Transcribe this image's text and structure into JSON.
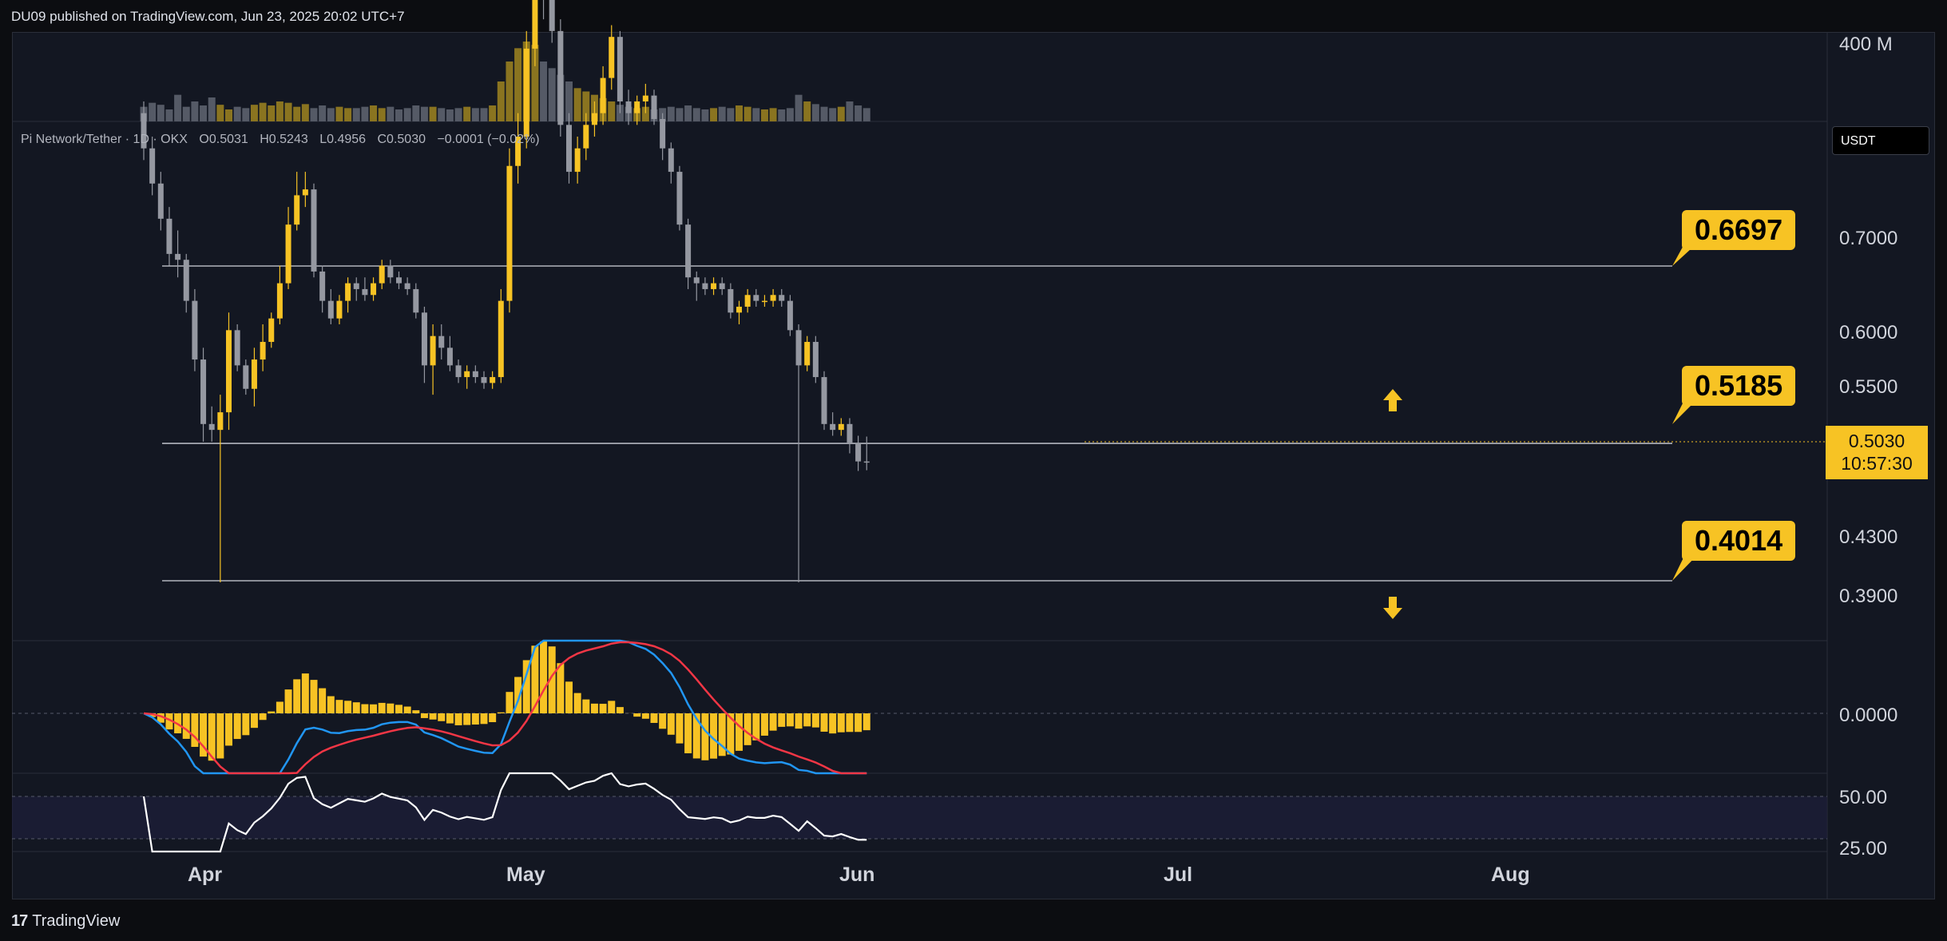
{
  "header": {
    "publisher": "DU09 published on TradingView.com, Jun 23, 2025 20:02 UTC+7"
  },
  "legend": {
    "symbol": "Pi Network/Tether · 1D · OKX",
    "open": "O0.5031",
    "high": "H0.5243",
    "low": "L0.4956",
    "close": "C0.5030",
    "change": "−0.0001 (−0.02%)"
  },
  "currency_button": "USDT",
  "current_price": {
    "price": "0.5030",
    "countdown": "10:57:30"
  },
  "levels": [
    {
      "label": "0.6697",
      "value": 0.6697
    },
    {
      "label": "0.5185",
      "value": 0.5185
    },
    {
      "label": "0.4014",
      "value": 0.4014
    }
  ],
  "price_axis": [
    "0.7000",
    "0.6000",
    "0.5500",
    "0.4300",
    "0.3900"
  ],
  "volume_axis": "400 M",
  "macd_axis": "0.0000",
  "rsi_axis": [
    "50.00",
    "25.00"
  ],
  "x_axis": [
    "Apr",
    "May",
    "Jun",
    "Jul",
    "Aug"
  ],
  "footer": {
    "brand": "TradingView"
  },
  "colors": {
    "bull": "#f7c324",
    "bear": "#9598a1",
    "macd": "#2196f3",
    "signal": "#f23645",
    "rsi": "#ffffff"
  },
  "chart_data": {
    "type": "candlestick",
    "x_start": "2025-03-22",
    "candles": [
      [
        0.8,
        0.81,
        0.76,
        0.77
      ],
      [
        0.77,
        0.78,
        0.73,
        0.74
      ],
      [
        0.74,
        0.75,
        0.7,
        0.71
      ],
      [
        0.71,
        0.72,
        0.67,
        0.68
      ],
      [
        0.68,
        0.7,
        0.66,
        0.675
      ],
      [
        0.675,
        0.68,
        0.63,
        0.64
      ],
      [
        0.64,
        0.65,
        0.58,
        0.59
      ],
      [
        0.59,
        0.6,
        0.52,
        0.535
      ],
      [
        0.535,
        0.55,
        0.52,
        0.53
      ],
      [
        0.53,
        0.56,
        0.4,
        0.545
      ],
      [
        0.545,
        0.63,
        0.53,
        0.615
      ],
      [
        0.615,
        0.62,
        0.58,
        0.585
      ],
      [
        0.585,
        0.59,
        0.56,
        0.565
      ],
      [
        0.565,
        0.6,
        0.55,
        0.59
      ],
      [
        0.59,
        0.62,
        0.58,
        0.605
      ],
      [
        0.605,
        0.63,
        0.6,
        0.625
      ],
      [
        0.625,
        0.67,
        0.62,
        0.655
      ],
      [
        0.655,
        0.72,
        0.65,
        0.705
      ],
      [
        0.705,
        0.75,
        0.7,
        0.73
      ],
      [
        0.73,
        0.75,
        0.72,
        0.735
      ],
      [
        0.735,
        0.74,
        0.66,
        0.665
      ],
      [
        0.665,
        0.67,
        0.63,
        0.64
      ],
      [
        0.64,
        0.65,
        0.62,
        0.625
      ],
      [
        0.625,
        0.645,
        0.62,
        0.64
      ],
      [
        0.64,
        0.66,
        0.63,
        0.655
      ],
      [
        0.655,
        0.66,
        0.64,
        0.65
      ],
      [
        0.65,
        0.66,
        0.64,
        0.645
      ],
      [
        0.645,
        0.66,
        0.64,
        0.655
      ],
      [
        0.655,
        0.675,
        0.65,
        0.67
      ],
      [
        0.67,
        0.675,
        0.655,
        0.66
      ],
      [
        0.66,
        0.665,
        0.65,
        0.655
      ],
      [
        0.655,
        0.66,
        0.645,
        0.65
      ],
      [
        0.65,
        0.655,
        0.625,
        0.63
      ],
      [
        0.63,
        0.635,
        0.57,
        0.585
      ],
      [
        0.585,
        0.62,
        0.56,
        0.61
      ],
      [
        0.61,
        0.62,
        0.59,
        0.6
      ],
      [
        0.6,
        0.61,
        0.58,
        0.585
      ],
      [
        0.585,
        0.59,
        0.57,
        0.575
      ],
      [
        0.575,
        0.585,
        0.565,
        0.58
      ],
      [
        0.58,
        0.585,
        0.57,
        0.575
      ],
      [
        0.575,
        0.58,
        0.565,
        0.57
      ],
      [
        0.57,
        0.58,
        0.565,
        0.575
      ],
      [
        0.575,
        0.65,
        0.57,
        0.64
      ],
      [
        0.64,
        0.77,
        0.63,
        0.755
      ],
      [
        0.755,
        0.8,
        0.74,
        0.78
      ],
      [
        0.78,
        0.87,
        0.77,
        0.855
      ],
      [
        0.855,
        0.93,
        0.84,
        0.91
      ],
      [
        0.91,
        0.94,
        0.88,
        0.9
      ],
      [
        0.9,
        0.91,
        0.86,
        0.87
      ],
      [
        0.87,
        0.88,
        0.78,
        0.79
      ],
      [
        0.79,
        0.8,
        0.74,
        0.75
      ],
      [
        0.75,
        0.78,
        0.74,
        0.77
      ],
      [
        0.77,
        0.8,
        0.76,
        0.79
      ],
      [
        0.79,
        0.81,
        0.78,
        0.8
      ],
      [
        0.8,
        0.84,
        0.79,
        0.83
      ],
      [
        0.83,
        0.875,
        0.82,
        0.865
      ],
      [
        0.865,
        0.87,
        0.8,
        0.81
      ],
      [
        0.81,
        0.82,
        0.79,
        0.8
      ],
      [
        0.8,
        0.815,
        0.79,
        0.81
      ],
      [
        0.81,
        0.825,
        0.8,
        0.815
      ],
      [
        0.815,
        0.82,
        0.79,
        0.795
      ],
      [
        0.795,
        0.8,
        0.76,
        0.77
      ],
      [
        0.77,
        0.775,
        0.74,
        0.75
      ],
      [
        0.75,
        0.755,
        0.7,
        0.705
      ],
      [
        0.705,
        0.71,
        0.65,
        0.66
      ],
      [
        0.66,
        0.665,
        0.64,
        0.655
      ],
      [
        0.655,
        0.66,
        0.645,
        0.65
      ],
      [
        0.65,
        0.66,
        0.645,
        0.655
      ],
      [
        0.655,
        0.66,
        0.645,
        0.65
      ],
      [
        0.65,
        0.655,
        0.625,
        0.63
      ],
      [
        0.63,
        0.64,
        0.62,
        0.635
      ],
      [
        0.635,
        0.65,
        0.63,
        0.645
      ],
      [
        0.645,
        0.65,
        0.635,
        0.64
      ],
      [
        0.64,
        0.645,
        0.635,
        0.64
      ],
      [
        0.64,
        0.65,
        0.635,
        0.645
      ],
      [
        0.645,
        0.65,
        0.635,
        0.64
      ],
      [
        0.64,
        0.645,
        0.61,
        0.615
      ],
      [
        0.615,
        0.62,
        0.4,
        0.585
      ],
      [
        0.585,
        0.61,
        0.58,
        0.605
      ],
      [
        0.605,
        0.61,
        0.57,
        0.575
      ],
      [
        0.575,
        0.58,
        0.53,
        0.535
      ],
      [
        0.535,
        0.545,
        0.525,
        0.53
      ],
      [
        0.53,
        0.54,
        0.525,
        0.535
      ],
      [
        0.535,
        0.54,
        0.51,
        0.5185
      ],
      [
        0.5185,
        0.525,
        0.495,
        0.5031
      ],
      [
        0.5031,
        0.5243,
        0.4956,
        0.503
      ]
    ],
    "volumes": [
      22,
      28,
      25,
      18,
      40,
      22,
      30,
      24,
      36,
      25,
      18,
      22,
      20,
      25,
      28,
      24,
      30,
      28,
      22,
      26,
      20,
      24,
      20,
      22,
      20,
      20,
      22,
      24,
      20,
      22,
      18,
      20,
      24,
      22,
      22,
      20,
      18,
      20,
      22,
      20,
      20,
      24,
      60,
      90,
      110,
      120,
      115,
      90,
      80,
      70,
      60,
      50,
      45,
      40,
      35,
      30,
      25,
      22,
      20,
      22,
      18,
      20,
      22,
      20,
      24,
      20,
      18,
      20,
      22,
      20,
      24,
      22,
      20,
      18,
      20,
      18,
      20,
      40,
      30,
      26,
      22,
      20,
      22,
      30,
      24,
      20
    ],
    "price_axis_ticks": [
      0.7,
      0.6,
      0.55,
      0.43,
      0.39
    ],
    "horizontal_levels": [
      0.6697,
      0.5185,
      0.4014
    ],
    "x_axis_labels": [
      "Apr",
      "May",
      "Jun",
      "Jul",
      "Aug"
    ],
    "indicators": [
      "Volume",
      "MACD",
      "RSI"
    ]
  }
}
